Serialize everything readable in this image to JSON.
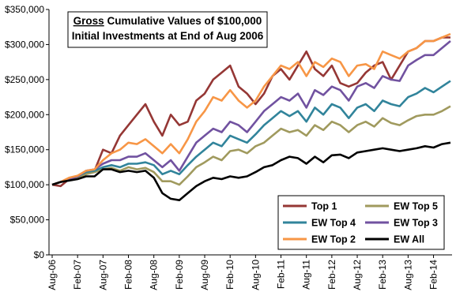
{
  "chart_data": {
    "type": "line",
    "title_emphasis": "Gross",
    "title_line1": "Cumulative Values of $100,000",
    "title_line2": "Initial Investments at End of Aug 2006",
    "categories": [
      "Aug-06",
      null,
      null,
      "Feb-07",
      null,
      null,
      "Aug-07",
      null,
      null,
      "Feb-08",
      null,
      null,
      "Aug-08",
      null,
      null,
      "Feb-09",
      null,
      null,
      "Aug-09",
      null,
      null,
      "Feb-10",
      null,
      null,
      "Aug-10",
      null,
      null,
      "Feb-11",
      null,
      null,
      "Aug-11",
      null,
      null,
      "Feb-12",
      null,
      null,
      "Aug-12",
      null,
      null,
      "Feb-13",
      null,
      null,
      "Aug-13",
      null,
      null,
      "Feb-14",
      null,
      null
    ],
    "ylim": [
      0,
      350000
    ],
    "yticks": [
      {
        "value": 0,
        "label": "$0"
      },
      {
        "value": 50000,
        "label": "$50,000"
      },
      {
        "value": 100000,
        "label": "$100,000"
      },
      {
        "value": 150000,
        "label": "$150,000"
      },
      {
        "value": 200000,
        "label": "$200,000"
      },
      {
        "value": 250000,
        "label": "$250,000"
      },
      {
        "value": 300000,
        "label": "$300,000"
      },
      {
        "value": 350000,
        "label": "$350,000"
      }
    ],
    "grid": false,
    "legend": "lower right",
    "series": [
      {
        "name": "Top 1",
        "color": "#953735",
        "values": [
          100000,
          98000,
          108000,
          110000,
          118000,
          120000,
          150000,
          145000,
          170000,
          185000,
          200000,
          215000,
          190000,
          170000,
          200000,
          185000,
          190000,
          220000,
          230000,
          250000,
          260000,
          270000,
          240000,
          230000,
          215000,
          230000,
          255000,
          265000,
          250000,
          270000,
          290000,
          265000,
          255000,
          270000,
          245000,
          240000,
          245000,
          260000,
          270000,
          275000,
          250000,
          270000,
          290000,
          295000,
          305000,
          305000,
          310000,
          310000
        ]
      },
      {
        "name": "EW Top 5",
        "color": "#a09a5e",
        "values": [
          100000,
          104000,
          107000,
          110000,
          115000,
          118000,
          122000,
          124000,
          120000,
          125000,
          122000,
          124000,
          118000,
          105000,
          105000,
          100000,
          112000,
          125000,
          132000,
          140000,
          135000,
          148000,
          150000,
          145000,
          155000,
          160000,
          170000,
          180000,
          175000,
          178000,
          170000,
          185000,
          178000,
          190000,
          185000,
          175000,
          185000,
          190000,
          183000,
          195000,
          188000,
          185000,
          192000,
          198000,
          200000,
          200000,
          205000,
          212000
        ]
      },
      {
        "name": "EW Top 4",
        "color": "#31849b",
        "values": [
          100000,
          104000,
          108000,
          112000,
          118000,
          120000,
          125000,
          128000,
          125000,
          130000,
          130000,
          132000,
          128000,
          115000,
          120000,
          115000,
          128000,
          140000,
          150000,
          160000,
          155000,
          170000,
          165000,
          160000,
          172000,
          185000,
          195000,
          205000,
          198000,
          205000,
          190000,
          210000,
          200000,
          215000,
          210000,
          195000,
          210000,
          215000,
          205000,
          220000,
          215000,
          212000,
          225000,
          230000,
          238000,
          232000,
          240000,
          248000
        ]
      },
      {
        "name": "EW Top 3",
        "color": "#7152a0",
        "values": [
          100000,
          104000,
          108000,
          112000,
          120000,
          122000,
          130000,
          135000,
          135000,
          140000,
          140000,
          145000,
          135000,
          125000,
          135000,
          120000,
          140000,
          160000,
          170000,
          180000,
          175000,
          190000,
          185000,
          175000,
          190000,
          205000,
          215000,
          225000,
          220000,
          230000,
          210000,
          235000,
          228000,
          240000,
          235000,
          220000,
          240000,
          245000,
          238000,
          255000,
          250000,
          248000,
          270000,
          278000,
          285000,
          285000,
          295000,
          305000
        ]
      },
      {
        "name": "EW Top 2",
        "color": "#f79646",
        "values": [
          100000,
          104000,
          110000,
          113000,
          120000,
          122000,
          135000,
          145000,
          150000,
          160000,
          158000,
          165000,
          155000,
          145000,
          158000,
          145000,
          165000,
          190000,
          205000,
          225000,
          220000,
          235000,
          220000,
          210000,
          220000,
          240000,
          255000,
          270000,
          265000,
          275000,
          255000,
          275000,
          268000,
          280000,
          275000,
          255000,
          270000,
          272000,
          265000,
          290000,
          285000,
          280000,
          290000,
          295000,
          305000,
          305000,
          310000,
          315000
        ]
      },
      {
        "name": "EW All",
        "color": "#000000",
        "values": [
          100000,
          104000,
          106000,
          108000,
          112000,
          112000,
          122000,
          122000,
          118000,
          120000,
          118000,
          120000,
          110000,
          88000,
          80000,
          78000,
          88000,
          98000,
          105000,
          110000,
          108000,
          112000,
          110000,
          112000,
          118000,
          125000,
          128000,
          135000,
          140000,
          138000,
          130000,
          140000,
          132000,
          142000,
          143000,
          138000,
          146000,
          148000,
          150000,
          152000,
          150000,
          148000,
          150000,
          152000,
          155000,
          153000,
          158000,
          160000
        ]
      }
    ]
  }
}
